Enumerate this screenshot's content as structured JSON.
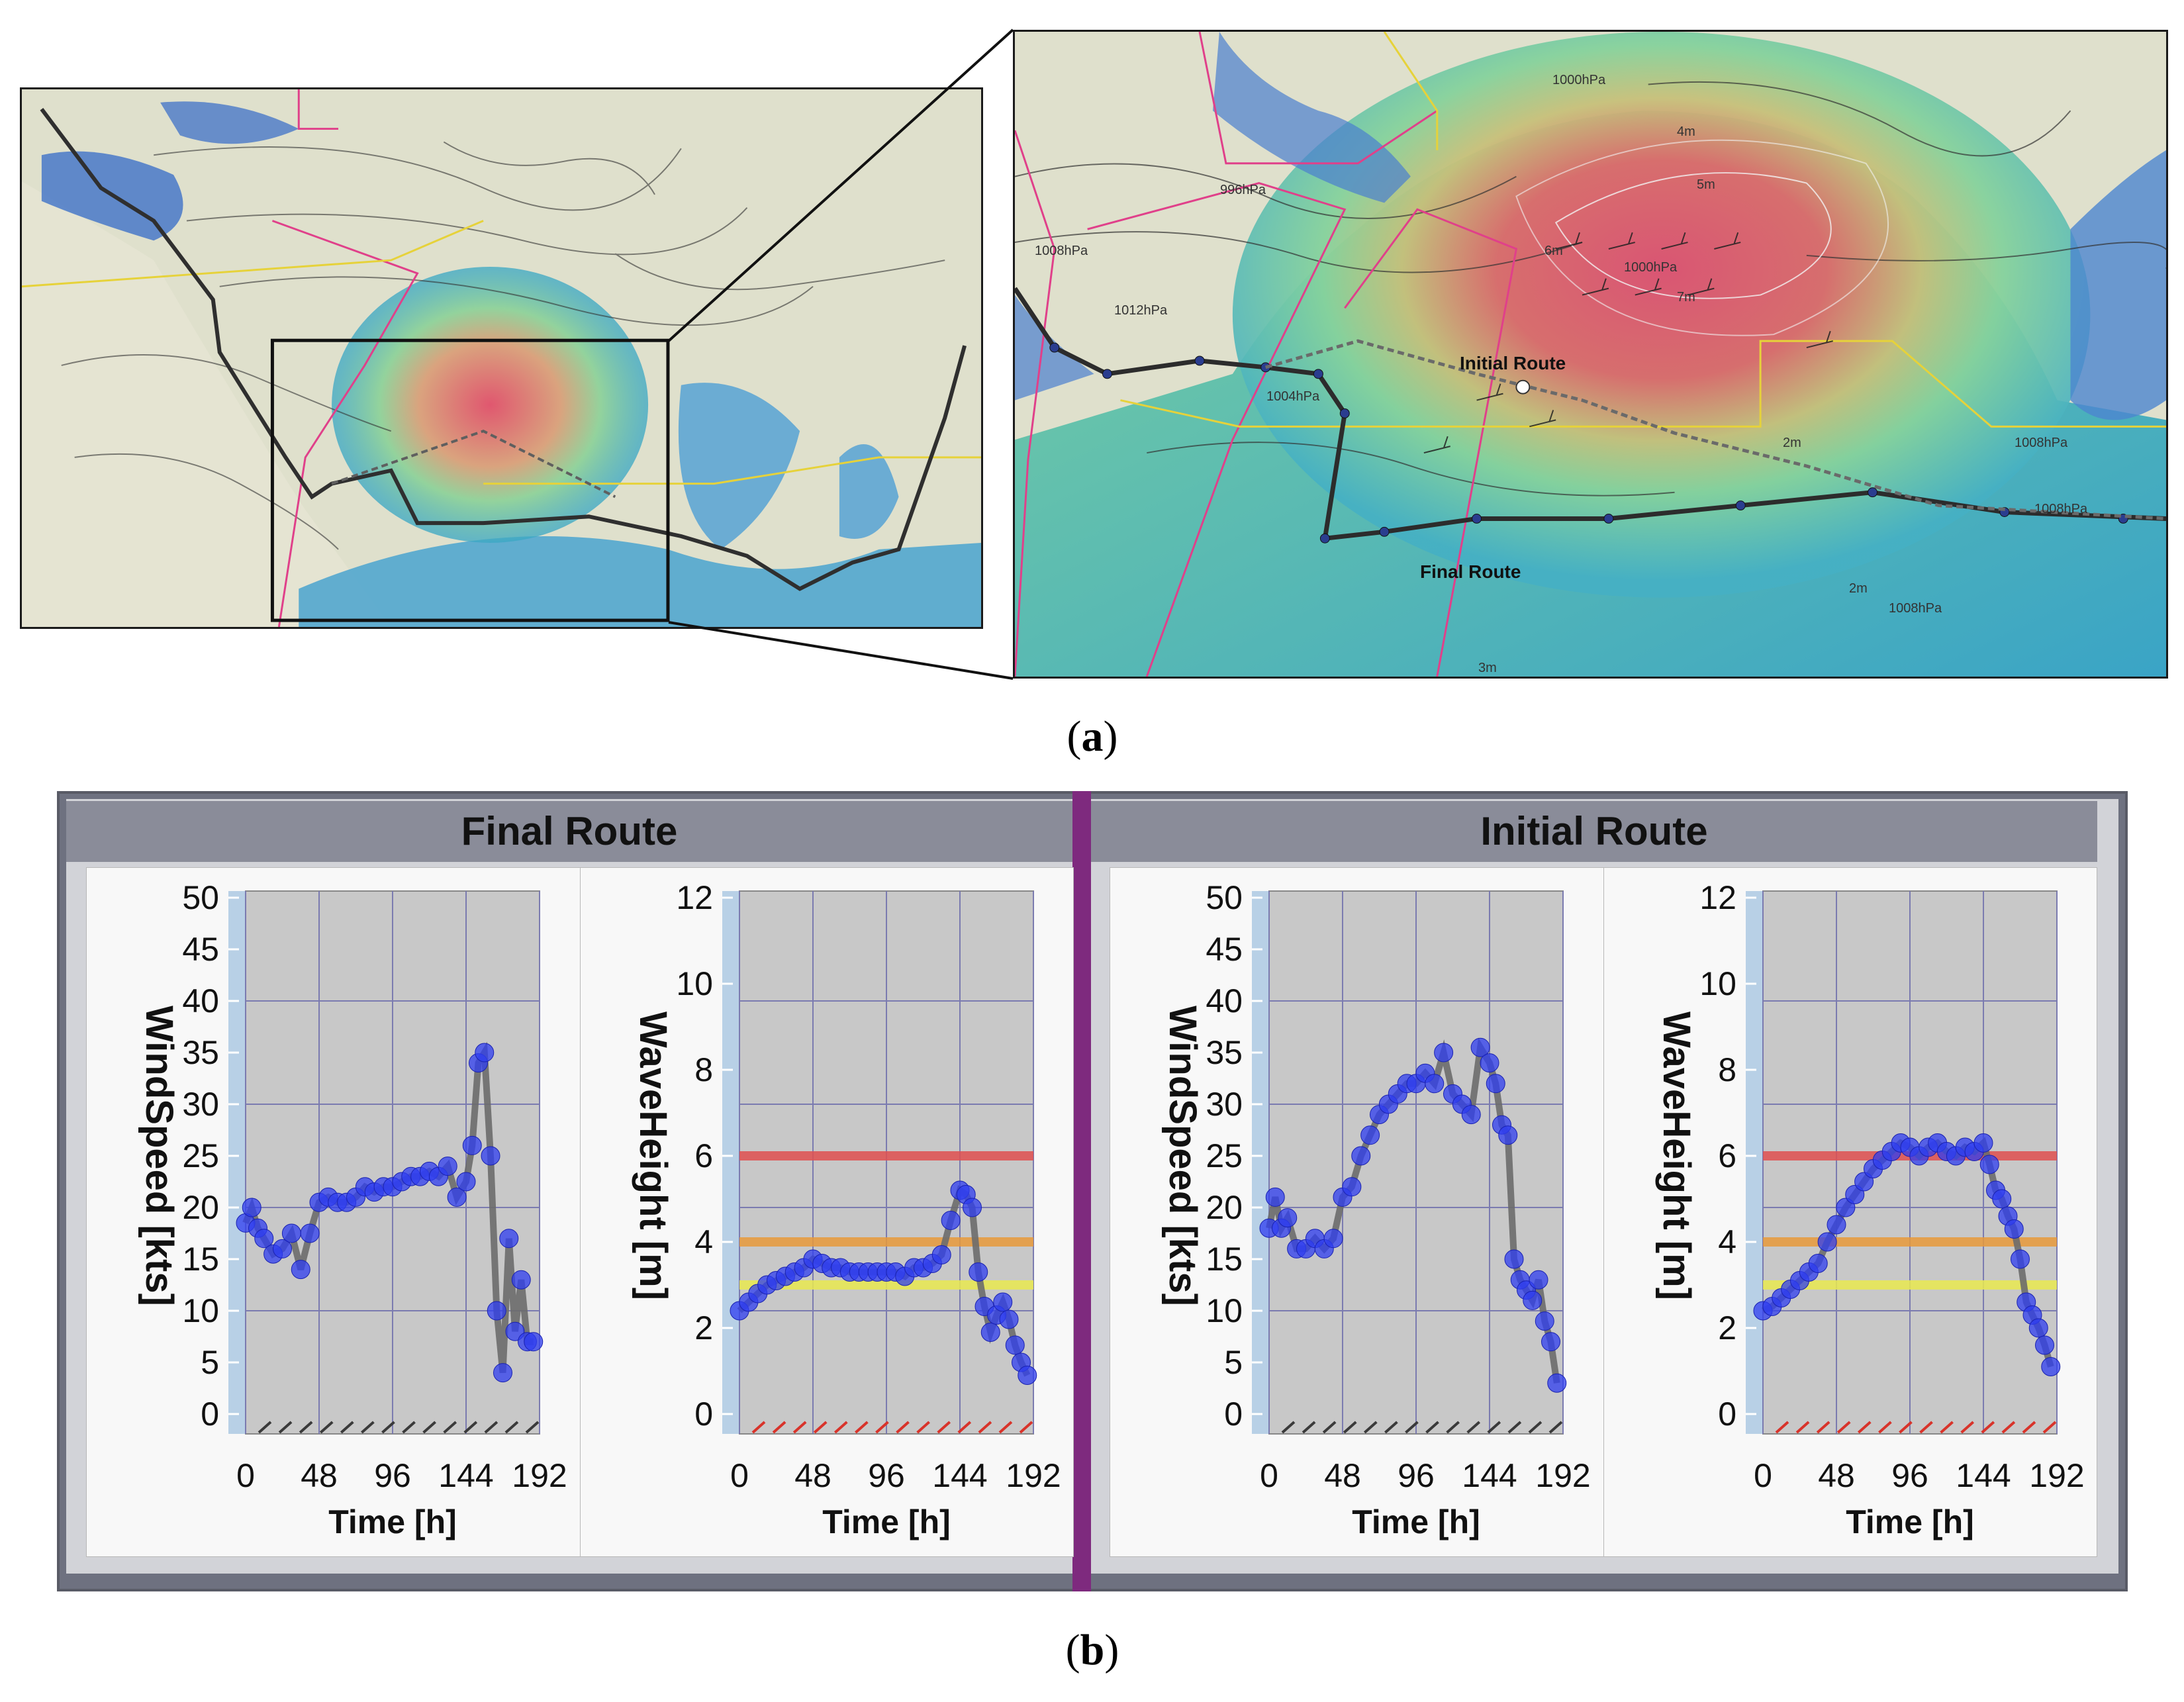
{
  "captions": {
    "a": "a",
    "b": "b"
  },
  "map": {
    "route_labels": {
      "initial": "Initial Route",
      "final": "Final Route"
    },
    "isobar_labels": [
      "1000hPa",
      "996hPa",
      "1008hPa",
      "1004hPa",
      "1012hPa",
      "1008hPa",
      "1000hPa",
      "1008hPa",
      "1008hPa"
    ],
    "wave_labels": [
      "4m",
      "5m",
      "6m",
      "7m",
      "2m",
      "2m",
      "3m"
    ],
    "colors": {
      "land": "#dfe0cc",
      "sea_low": "#3aa7c4",
      "sea_mid": "#7fd19a",
      "sea_high": "#e0506a",
      "route": "#3c3c3c",
      "boundary_pink": "#e0408a",
      "boundary_yellow": "#e6d23a"
    }
  },
  "dashboard": {
    "groups": [
      {
        "title": "Final Route"
      },
      {
        "title": "Initial Route"
      }
    ]
  },
  "chart_data": [
    {
      "type": "scatter",
      "group": "Final Route",
      "ylabel": "WindSpeed [kts]",
      "xlabel": "Time [h]",
      "xlim": [
        0,
        192
      ],
      "ylim": [
        0,
        50
      ],
      "xticks": [
        "0",
        "48",
        "96",
        "144",
        "192"
      ],
      "yticks": [
        "0",
        "5",
        "10",
        "15",
        "20",
        "25",
        "30",
        "35",
        "40",
        "45",
        "50"
      ],
      "x": [
        0,
        4,
        8,
        12,
        18,
        24,
        30,
        36,
        42,
        48,
        54,
        60,
        66,
        72,
        78,
        84,
        90,
        96,
        102,
        108,
        114,
        120,
        126,
        132,
        138,
        144,
        148,
        152,
        156,
        160,
        164,
        168,
        172,
        176,
        180,
        184,
        188
      ],
      "y": [
        18.5,
        20,
        18,
        17,
        15.5,
        16,
        17.5,
        14,
        17.5,
        20.5,
        21,
        20.5,
        20.5,
        21,
        22,
        21.5,
        22,
        22,
        22.5,
        23,
        23,
        23.5,
        23,
        24,
        21,
        22.5,
        26,
        34,
        35,
        25,
        10,
        4,
        17,
        8,
        13,
        7,
        7
      ],
      "thresholds": []
    },
    {
      "type": "scatter",
      "group": "Final Route",
      "ylabel": "WaveHeight [m]",
      "xlabel": "Time [h]",
      "xlim": [
        0,
        192
      ],
      "ylim": [
        0,
        12
      ],
      "xticks": [
        "0",
        "48",
        "96",
        "144",
        "192"
      ],
      "yticks": [
        "0",
        "2",
        "4",
        "6",
        "8",
        "10",
        "12"
      ],
      "x": [
        0,
        6,
        12,
        18,
        24,
        30,
        36,
        42,
        48,
        54,
        60,
        66,
        72,
        78,
        84,
        90,
        96,
        102,
        108,
        114,
        120,
        126,
        132,
        138,
        144,
        148,
        152,
        156,
        160,
        164,
        168,
        172,
        176,
        180,
        184,
        188
      ],
      "y": [
        2.4,
        2.6,
        2.8,
        3.0,
        3.1,
        3.2,
        3.3,
        3.4,
        3.6,
        3.5,
        3.4,
        3.4,
        3.3,
        3.3,
        3.3,
        3.3,
        3.3,
        3.3,
        3.2,
        3.4,
        3.4,
        3.5,
        3.7,
        4.5,
        5.2,
        5.1,
        4.8,
        3.3,
        2.5,
        1.9,
        2.3,
        2.6,
        2.2,
        1.6,
        1.2,
        0.9
      ],
      "thresholds": [
        {
          "value": 6,
          "color": "#e05050"
        },
        {
          "value": 4,
          "color": "#e89a3a"
        },
        {
          "value": 3,
          "color": "#eaea50"
        }
      ]
    },
    {
      "type": "scatter",
      "group": "Initial Route",
      "ylabel": "WindSpeed [kts]",
      "xlabel": "Time [h]",
      "xlim": [
        0,
        192
      ],
      "ylim": [
        0,
        50
      ],
      "xticks": [
        "0",
        "48",
        "96",
        "144",
        "192"
      ],
      "yticks": [
        "0",
        "5",
        "10",
        "15",
        "20",
        "25",
        "30",
        "35",
        "40",
        "45",
        "50"
      ],
      "x": [
        0,
        4,
        8,
        12,
        18,
        24,
        30,
        36,
        42,
        48,
        54,
        60,
        66,
        72,
        78,
        84,
        90,
        96,
        102,
        108,
        114,
        120,
        126,
        132,
        138,
        144,
        148,
        152,
        156,
        160,
        164,
        168,
        172,
        176,
        180,
        184,
        188
      ],
      "y": [
        18,
        21,
        18,
        19,
        16,
        16,
        17,
        16,
        17,
        21,
        22,
        25,
        27,
        29,
        30,
        31,
        32,
        32,
        33,
        32,
        35,
        31,
        30,
        29,
        35.5,
        34,
        32,
        28,
        27,
        15,
        13,
        12,
        11,
        13,
        9,
        7,
        3
      ],
      "thresholds": []
    },
    {
      "type": "scatter",
      "group": "Initial Route",
      "ylabel": "WaveHeight [m]",
      "xlabel": "Time [h]",
      "xlim": [
        0,
        192
      ],
      "ylim": [
        0,
        12
      ],
      "xticks": [
        "0",
        "48",
        "96",
        "144",
        "192"
      ],
      "yticks": [
        "0",
        "2",
        "4",
        "6",
        "8",
        "10",
        "12"
      ],
      "x": [
        0,
        6,
        12,
        18,
        24,
        30,
        36,
        42,
        48,
        54,
        60,
        66,
        72,
        78,
        84,
        90,
        96,
        102,
        108,
        114,
        120,
        126,
        132,
        138,
        144,
        148,
        152,
        156,
        160,
        164,
        168,
        172,
        176,
        180,
        184,
        188
      ],
      "y": [
        2.4,
        2.5,
        2.7,
        2.9,
        3.1,
        3.3,
        3.5,
        4.0,
        4.4,
        4.8,
        5.1,
        5.4,
        5.7,
        5.9,
        6.1,
        6.3,
        6.2,
        6.0,
        6.2,
        6.3,
        6.1,
        6.0,
        6.2,
        6.1,
        6.3,
        5.8,
        5.2,
        5.0,
        4.6,
        4.3,
        3.6,
        2.6,
        2.3,
        2.0,
        1.6,
        1.1
      ],
      "thresholds": [
        {
          "value": 6,
          "color": "#e05050"
        },
        {
          "value": 4,
          "color": "#e89a3a"
        },
        {
          "value": 3,
          "color": "#eaea50"
        }
      ]
    }
  ]
}
